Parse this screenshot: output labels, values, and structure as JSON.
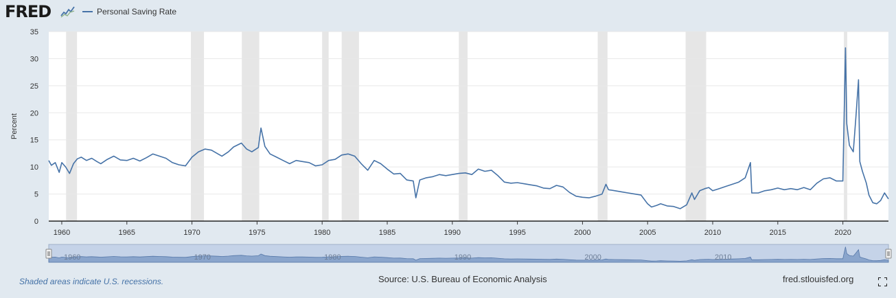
{
  "header": {
    "logo_text": "FRED",
    "logo_icon": "fred-chart-icon",
    "legend_label": "Personal Saving Rate",
    "legend_color": "#4572a7"
  },
  "footer": {
    "note": "Shaded areas indicate U.S. recessions.",
    "source": "Source: U.S. Bureau of Economic Analysis",
    "site": "fred.stlouisfed.org",
    "fullscreen_icon": "fullscreen-icon"
  },
  "chart_data": {
    "type": "line",
    "title": "",
    "xlabel": "",
    "ylabel": "Percent",
    "xlim": [
      1959.0,
      2023.5
    ],
    "ylim": [
      0,
      35
    ],
    "yticks": [
      0,
      5,
      10,
      15,
      20,
      25,
      30,
      35
    ],
    "xticks": [
      1960,
      1965,
      1970,
      1975,
      1980,
      1985,
      1990,
      1995,
      2000,
      2005,
      2010,
      2015,
      2020
    ],
    "grid": true,
    "legend": "top-left",
    "line_color": "#4572a7",
    "recession_color": "#e6e6e6",
    "recessions": [
      [
        1960.33,
        1961.17
      ],
      [
        1969.92,
        1970.92
      ],
      [
        1973.83,
        1975.17
      ],
      [
        1980.0,
        1980.5
      ],
      [
        1981.5,
        1982.83
      ],
      [
        1990.5,
        1991.17
      ],
      [
        2001.17,
        2001.92
      ],
      [
        2007.92,
        2009.5
      ],
      [
        2020.08,
        2020.33
      ]
    ],
    "series": [
      {
        "name": "Personal Saving Rate",
        "x": [
          1959.0,
          1959.2,
          1959.5,
          1959.8,
          1960.0,
          1960.3,
          1960.6,
          1960.9,
          1961.2,
          1961.5,
          1961.9,
          1962.3,
          1962.7,
          1963.0,
          1963.5,
          1964.0,
          1964.5,
          1965.0,
          1965.5,
          1966.0,
          1966.5,
          1967.0,
          1967.5,
          1968.0,
          1968.5,
          1969.0,
          1969.5,
          1970.0,
          1970.5,
          1971.0,
          1971.5,
          1972.0,
          1972.3,
          1972.8,
          1973.2,
          1973.8,
          1974.2,
          1974.6,
          1975.1,
          1975.3,
          1975.6,
          1976.0,
          1976.5,
          1977.0,
          1977.5,
          1978.0,
          1978.5,
          1979.0,
          1979.5,
          1980.0,
          1980.5,
          1981.0,
          1981.5,
          1982.0,
          1982.5,
          1983.0,
          1983.5,
          1984.0,
          1984.5,
          1985.0,
          1985.5,
          1986.0,
          1986.5,
          1987.0,
          1987.2,
          1987.5,
          1988.0,
          1988.5,
          1989.0,
          1989.5,
          1990.0,
          1990.5,
          1991.0,
          1991.5,
          1992.0,
          1992.5,
          1993.0,
          1993.5,
          1994.0,
          1994.5,
          1995.0,
          1995.5,
          1996.0,
          1996.5,
          1997.0,
          1997.5,
          1998.0,
          1998.5,
          1999.0,
          1999.5,
          2000.0,
          2000.5,
          2001.0,
          2001.5,
          2001.8,
          2002.0,
          2002.5,
          2003.0,
          2003.5,
          2004.0,
          2004.5,
          2005.0,
          2005.3,
          2005.7,
          2006.0,
          2006.5,
          2007.0,
          2007.5,
          2008.0,
          2008.4,
          2008.6,
          2009.0,
          2009.4,
          2009.7,
          2010.0,
          2010.5,
          2011.0,
          2011.5,
          2012.0,
          2012.5,
          2012.9,
          2013.0,
          2013.5,
          2014.0,
          2014.5,
          2015.0,
          2015.5,
          2016.0,
          2016.5,
          2017.0,
          2017.5,
          2018.0,
          2018.5,
          2019.0,
          2019.5,
          2020.0,
          2020.2,
          2020.3,
          2020.5,
          2020.8,
          2021.0,
          2021.2,
          2021.3,
          2021.5,
          2021.8,
          2022.0,
          2022.3,
          2022.6,
          2022.9,
          2023.2,
          2023.5
        ],
        "y": [
          11.2,
          10.3,
          10.8,
          9.0,
          10.8,
          10.0,
          8.8,
          10.6,
          11.5,
          11.8,
          11.2,
          11.6,
          11.0,
          10.6,
          11.4,
          12.0,
          11.3,
          11.2,
          11.6,
          11.1,
          11.7,
          12.4,
          12.0,
          11.6,
          10.8,
          10.4,
          10.2,
          11.8,
          12.8,
          13.3,
          13.1,
          12.4,
          12.0,
          12.8,
          13.7,
          14.4,
          13.3,
          12.8,
          13.6,
          17.2,
          13.8,
          12.4,
          11.8,
          11.2,
          10.6,
          11.2,
          11.0,
          10.8,
          10.2,
          10.4,
          11.2,
          11.4,
          12.2,
          12.4,
          12.0,
          10.6,
          9.4,
          11.2,
          10.6,
          9.6,
          8.7,
          8.8,
          7.6,
          7.4,
          4.3,
          7.6,
          8.0,
          8.2,
          8.6,
          8.4,
          8.6,
          8.8,
          8.9,
          8.6,
          9.6,
          9.2,
          9.4,
          8.4,
          7.2,
          7.0,
          7.1,
          6.9,
          6.7,
          6.5,
          6.1,
          6.0,
          6.6,
          6.3,
          5.3,
          4.6,
          4.4,
          4.3,
          4.6,
          5.0,
          6.8,
          5.8,
          5.6,
          5.4,
          5.2,
          5.0,
          4.8,
          3.2,
          2.6,
          2.9,
          3.2,
          2.8,
          2.7,
          2.3,
          3.0,
          5.2,
          4.0,
          5.6,
          6.0,
          6.2,
          5.6,
          6.0,
          6.4,
          6.8,
          7.2,
          8.0,
          10.8,
          5.2,
          5.2,
          5.6,
          5.8,
          6.1,
          5.8,
          6.0,
          5.8,
          6.2,
          5.8,
          7.0,
          7.8,
          8.0,
          7.4,
          7.4,
          32.0,
          18.0,
          14.0,
          12.8,
          19.2,
          26.1,
          11.0,
          9.2,
          7.0,
          4.8,
          3.4,
          3.2,
          3.8,
          5.2,
          4.1
        ]
      }
    ]
  },
  "navigator": {
    "labels": [
      "1960",
      "1970",
      "1980",
      "1990",
      "2000",
      "2010"
    ]
  }
}
